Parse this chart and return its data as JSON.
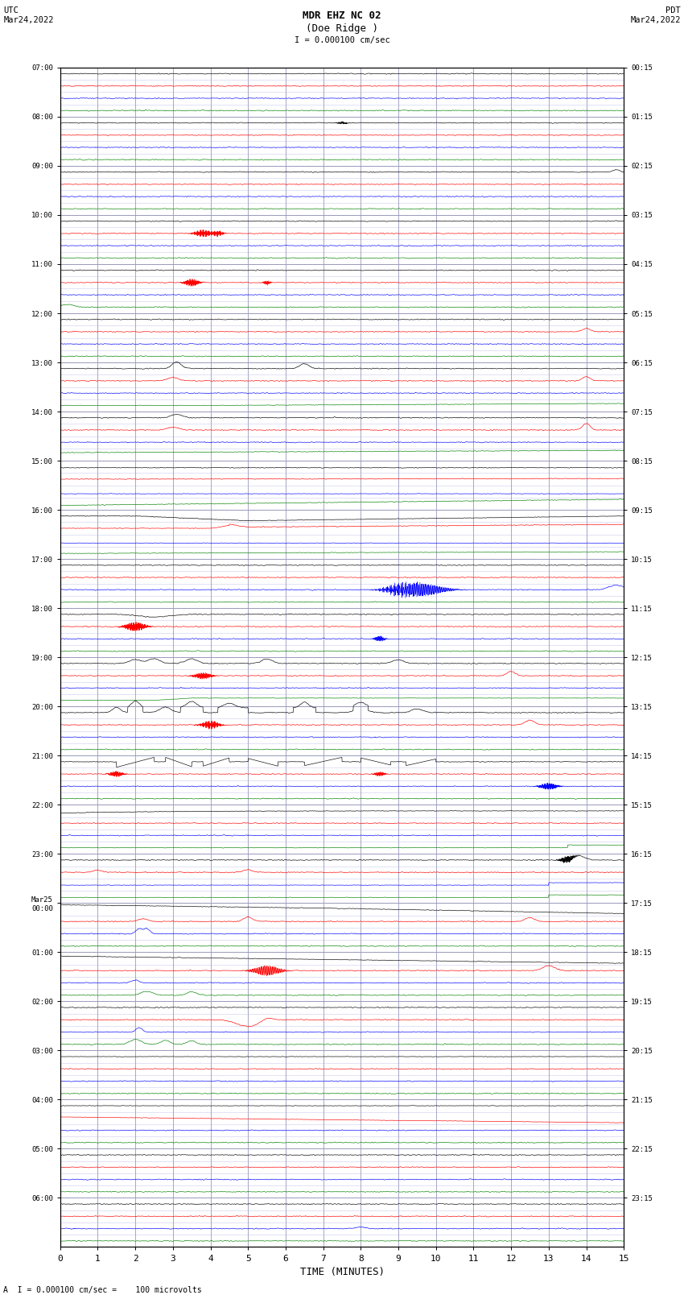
{
  "title_line1": "MDR EHZ NC 02",
  "title_line2": "(Doe Ridge )",
  "scale_text": "I = 0.000100 cm/sec",
  "left_label": "UTC\nMar24,2022",
  "right_label": "PDT\nMar24,2022",
  "xlabel": "TIME (MINUTES)",
  "footer_text": "A  I = 0.000100 cm/sec =    100 microvolts",
  "xlim": [
    0,
    15
  ],
  "xticks": [
    0,
    1,
    2,
    3,
    4,
    5,
    6,
    7,
    8,
    9,
    10,
    11,
    12,
    13,
    14,
    15
  ],
  "bg_color": "#ffffff",
  "grid_minor_color": "#ccccee",
  "grid_major_color": "#9999bb",
  "line_colors": [
    "black",
    "red",
    "blue",
    "green"
  ],
  "utc_labels": [
    "07:00",
    "08:00",
    "09:00",
    "10:00",
    "11:00",
    "12:00",
    "13:00",
    "14:00",
    "15:00",
    "16:00",
    "17:00",
    "18:00",
    "19:00",
    "20:00",
    "21:00",
    "22:00",
    "23:00",
    "Mar25\n00:00",
    "01:00",
    "02:00",
    "03:00",
    "04:00",
    "05:00",
    "06:00"
  ],
  "pdt_labels": [
    "00:15",
    "01:15",
    "02:15",
    "03:15",
    "04:15",
    "05:15",
    "06:15",
    "07:15",
    "08:15",
    "09:15",
    "10:15",
    "11:15",
    "12:15",
    "13:15",
    "14:15",
    "15:15",
    "16:15",
    "17:15",
    "18:15",
    "19:15",
    "20:15",
    "21:15",
    "22:15",
    "23:15"
  ],
  "n_hours": 24,
  "traces_per_hour": 4,
  "fig_width": 8.5,
  "fig_height": 16.13
}
